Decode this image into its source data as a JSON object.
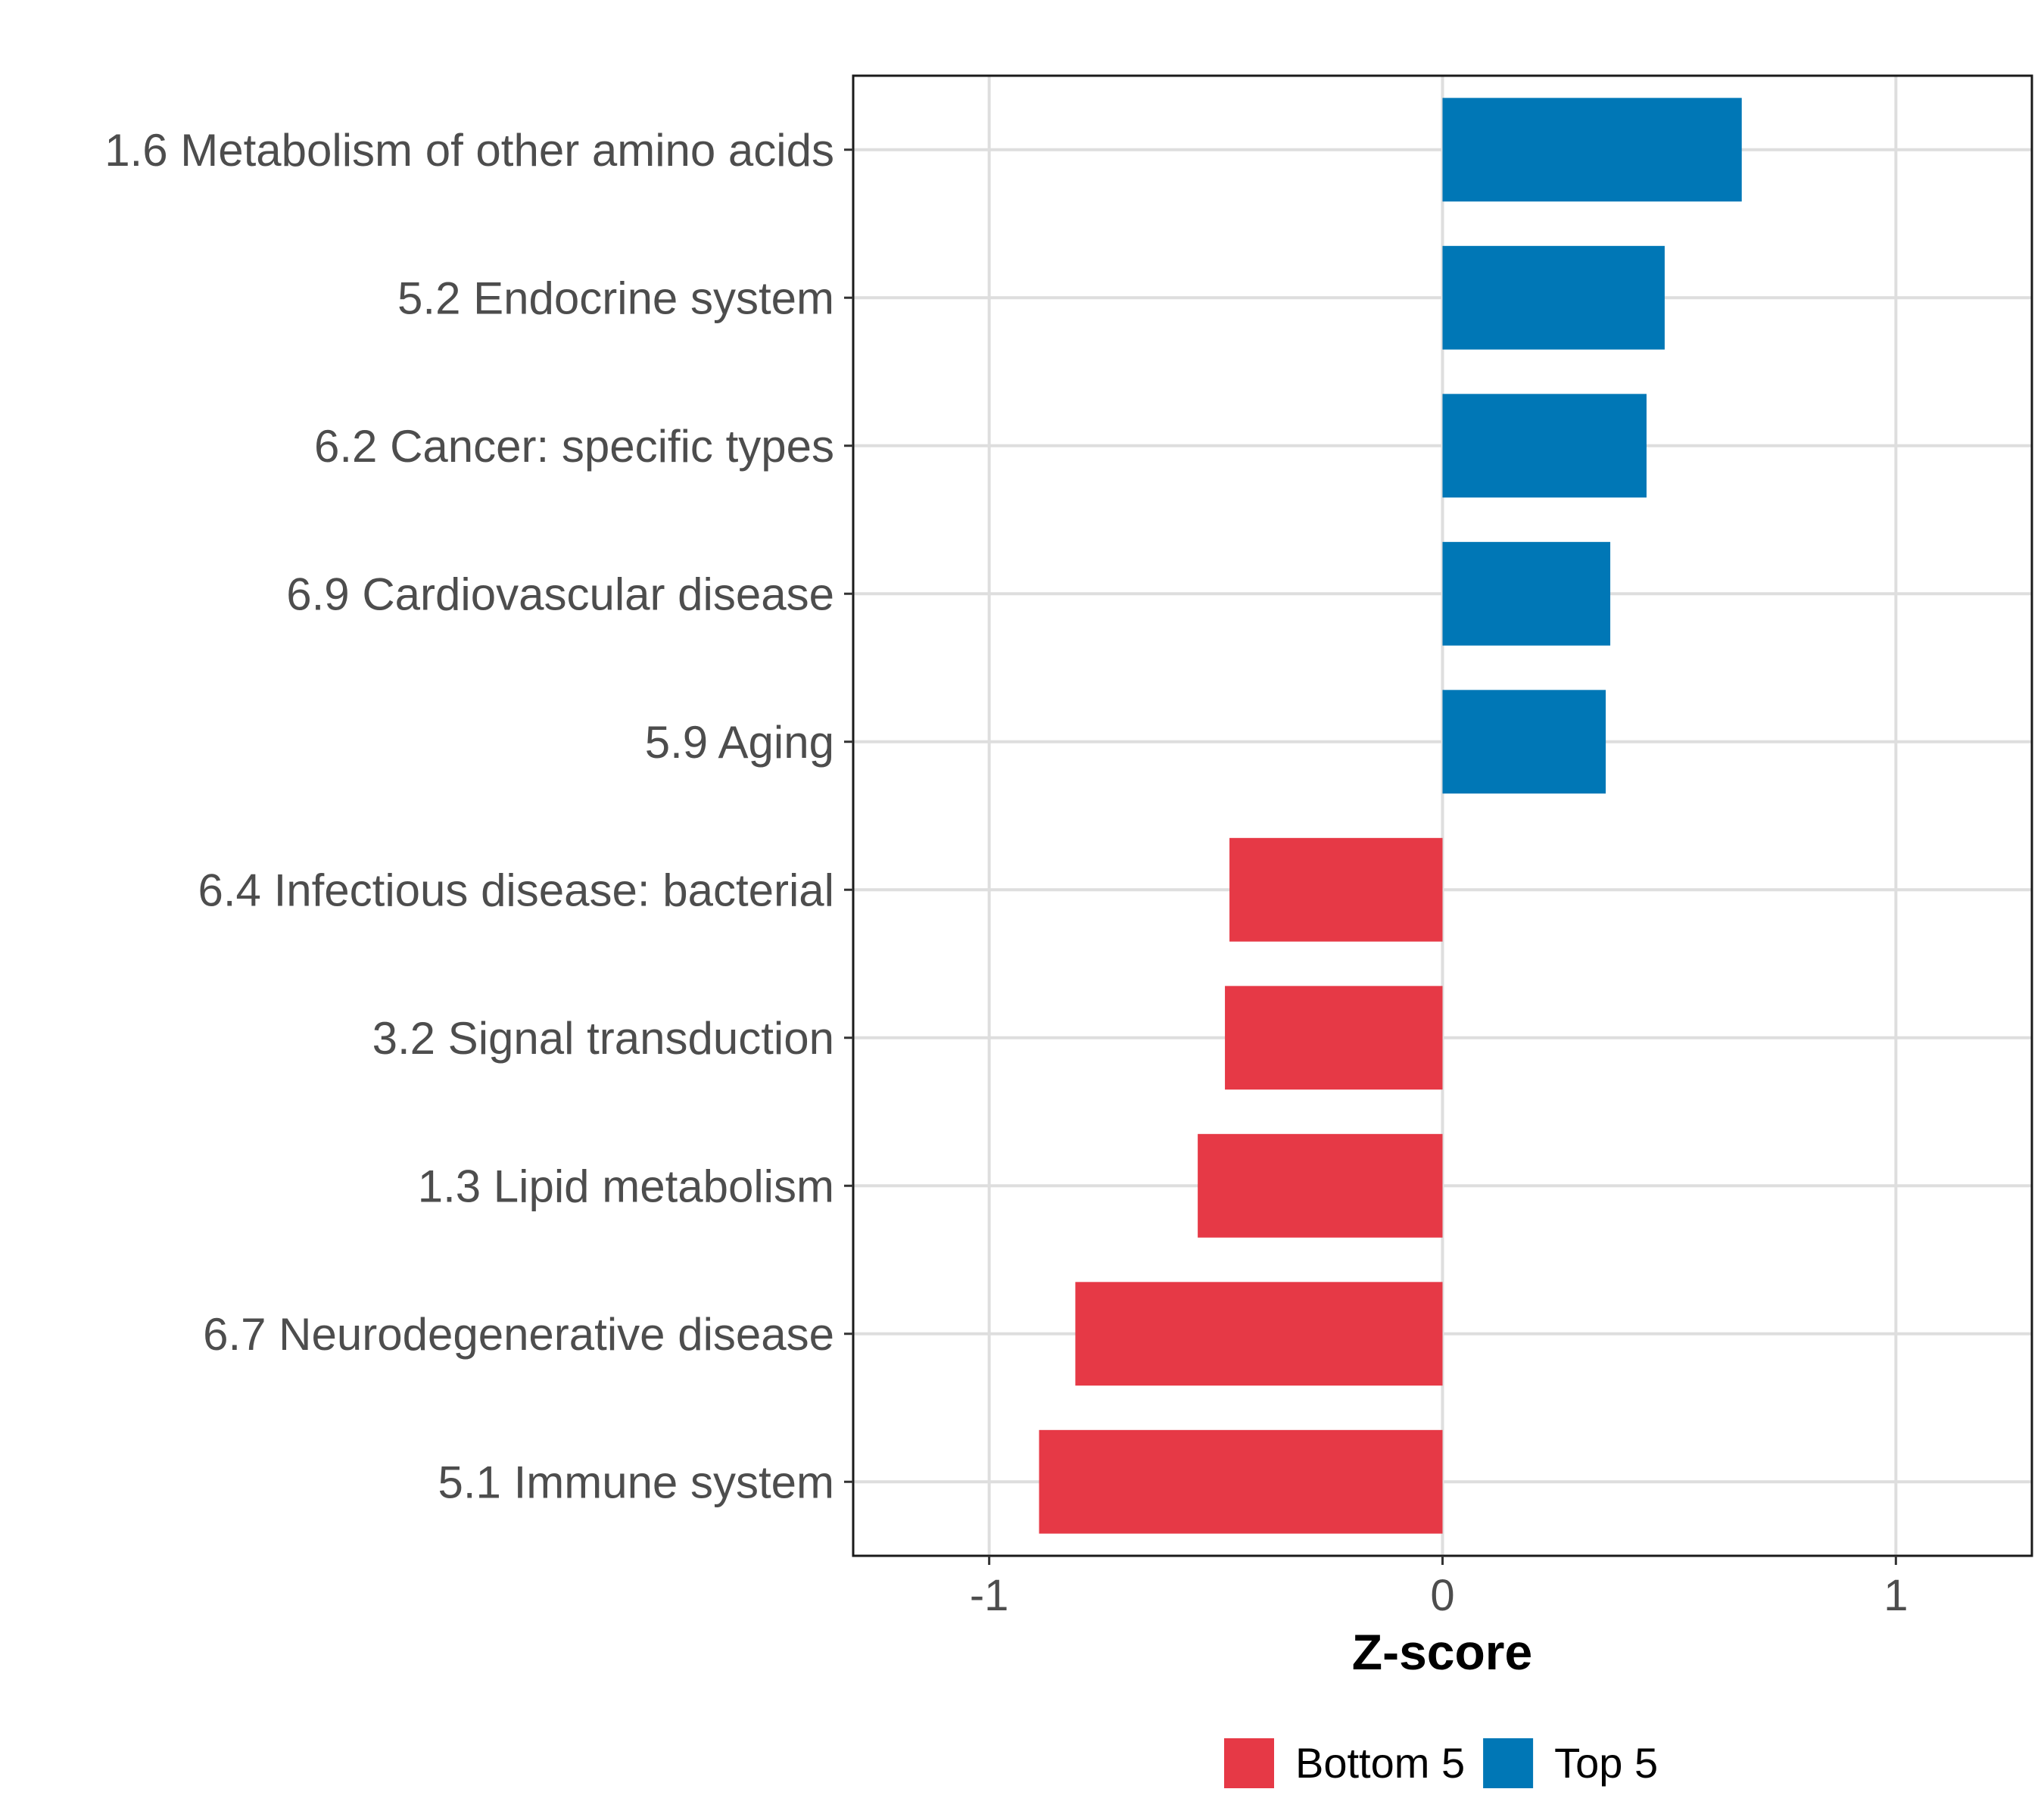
{
  "chart_data": {
    "type": "bar",
    "orientation": "horizontal",
    "title": "",
    "xlabel": "Z-score",
    "ylabel": "",
    "xlim": [
      -1.3,
      1.3
    ],
    "xticks": [
      -1,
      0,
      1
    ],
    "xtick_labels": [
      "-1",
      "0",
      "1"
    ],
    "grid": true,
    "legend_position": "bottom",
    "categories": [
      "1.6 Metabolism of other amino acids",
      "5.2 Endocrine system",
      "6.2 Cancer: specific types",
      "6.9 Cardiovascular disease",
      "5.9 Aging",
      "6.4 Infectious disease: bacterial",
      "3.2 Signal transduction",
      "1.3 Lipid metabolism",
      "6.7 Neurodegenerative disease",
      "5.1 Immune system"
    ],
    "values": [
      0.66,
      0.49,
      0.45,
      0.37,
      0.36,
      -0.47,
      -0.48,
      -0.54,
      -0.81,
      -0.89
    ],
    "groups": [
      "Top 5",
      "Top 5",
      "Top 5",
      "Top 5",
      "Top 5",
      "Bottom 5",
      "Bottom 5",
      "Bottom 5",
      "Bottom 5",
      "Bottom 5"
    ],
    "legend": [
      {
        "label": "Bottom 5",
        "color": "#e63946"
      },
      {
        "label": "Top 5",
        "color": "#0077b6"
      }
    ]
  }
}
